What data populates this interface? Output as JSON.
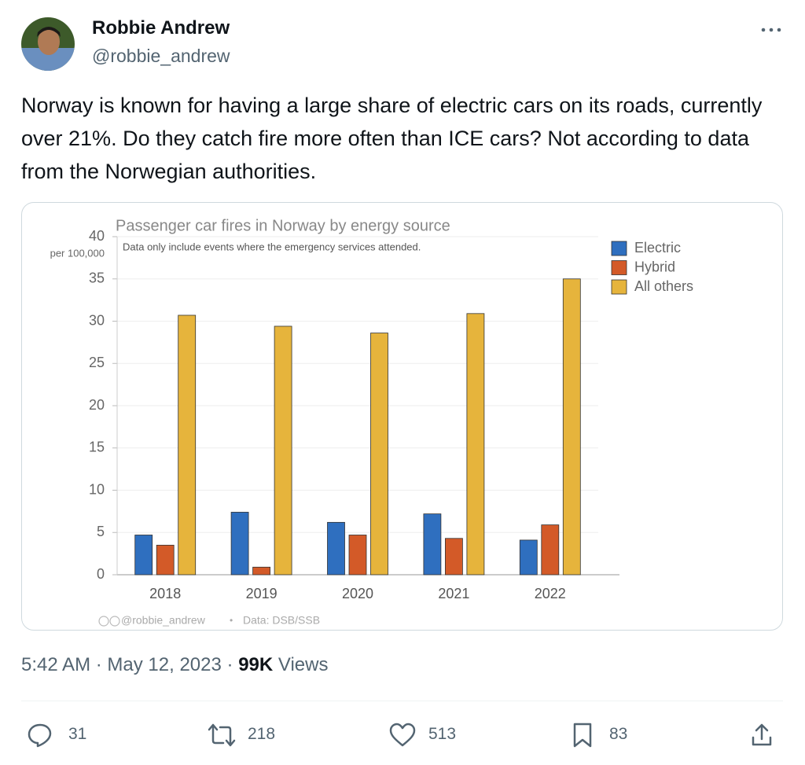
{
  "author": {
    "name": "Robbie Andrew",
    "handle": "@robbie_andrew"
  },
  "tweet_text": "Norway is known for having a large share of electric cars on its roads, currently over 21%. Do they catch fire more often than ICE cars? Not according to data from the Norwegian authorities.",
  "chart_data": {
    "type": "bar",
    "title": "Passenger car fires in Norway by energy source",
    "subtitle": "Data only include events where the emergency services attended.",
    "y_unit": "per 100,000",
    "categories": [
      "2018",
      "2019",
      "2020",
      "2021",
      "2022"
    ],
    "series": [
      {
        "name": "Electric",
        "color": "#2f6fbf",
        "values": [
          4.7,
          7.4,
          6.2,
          7.2,
          4.1
        ]
      },
      {
        "name": "Hybrid",
        "color": "#d35a28",
        "values": [
          3.5,
          0.9,
          4.7,
          4.3,
          5.9
        ]
      },
      {
        "name": "All others",
        "color": "#e6b43c",
        "values": [
          30.7,
          29.4,
          28.6,
          30.9,
          35.0
        ]
      }
    ],
    "ylim": [
      0,
      40
    ],
    "yticks": [
      0,
      5,
      10,
      15,
      20,
      25,
      30,
      35,
      40
    ],
    "grid": true,
    "legend": "right",
    "credit": "@robbie_andrew",
    "credit_separator": "•",
    "source": "Data: DSB/SSB"
  },
  "meta": {
    "time": "5:42 AM",
    "separator": "·",
    "date": "May 12, 2023",
    "views": "99K",
    "views_label": "Views"
  },
  "actions": {
    "replies": 31,
    "reposts": 218,
    "likes": 513,
    "bookmarks": 83
  }
}
